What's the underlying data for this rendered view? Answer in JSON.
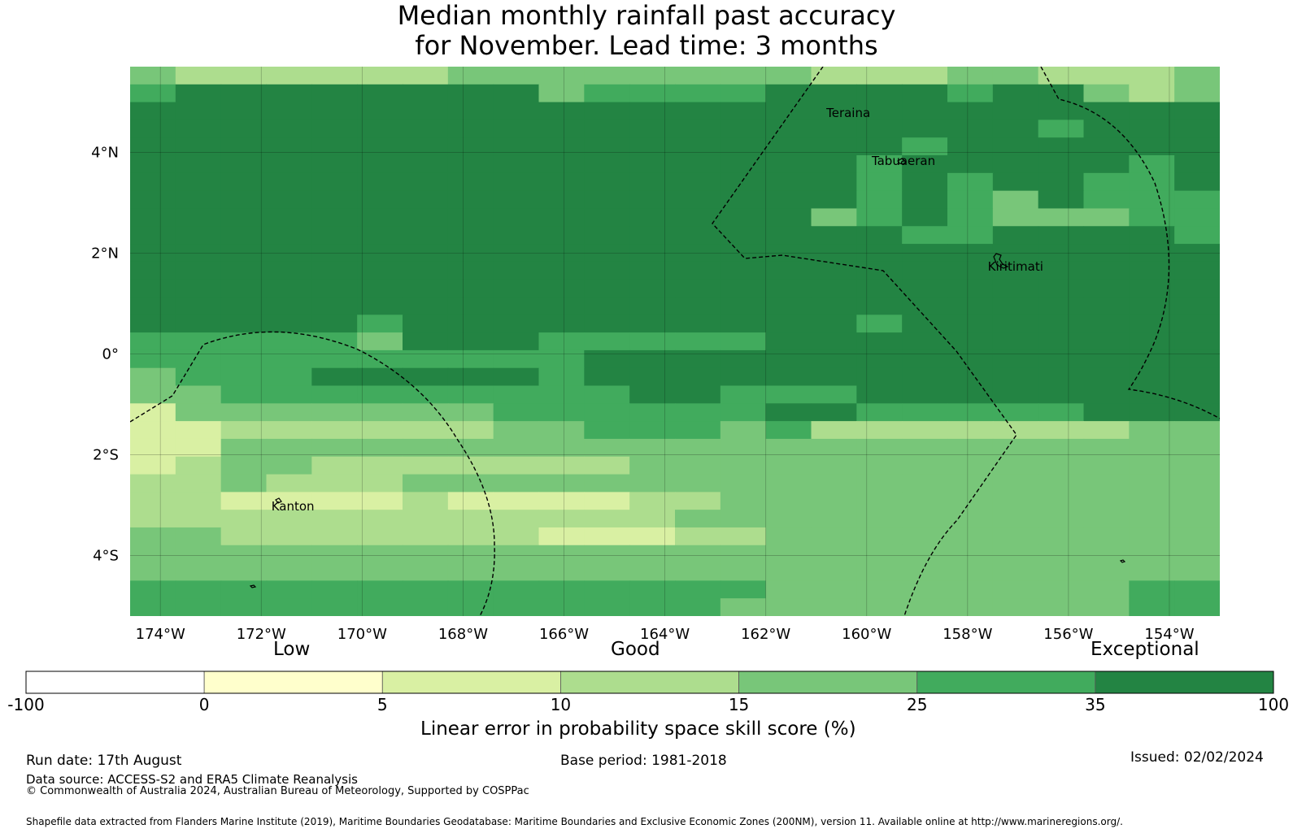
{
  "title": {
    "line1": "Median monthly rainfall past accuracy",
    "line2": "for November. Lead time: 3 months"
  },
  "map": {
    "lon_range": [
      -174.6,
      -153.0
    ],
    "lat_range": [
      -5.2,
      5.7
    ],
    "x_ticks": [
      {
        "lon": -174,
        "label": "174°W"
      },
      {
        "lon": -172,
        "label": "172°W"
      },
      {
        "lon": -170,
        "label": "170°W"
      },
      {
        "lon": -168,
        "label": "168°W"
      },
      {
        "lon": -166,
        "label": "166°W"
      },
      {
        "lon": -164,
        "label": "164°W"
      },
      {
        "lon": -162,
        "label": "162°W"
      },
      {
        "lon": -160,
        "label": "160°W"
      },
      {
        "lon": -158,
        "label": "158°W"
      },
      {
        "lon": -156,
        "label": "156°W"
      },
      {
        "lon": -154,
        "label": "154°W"
      }
    ],
    "y_ticks": [
      {
        "lat": 4,
        "label": "4°N"
      },
      {
        "lat": 2,
        "label": "2°N"
      },
      {
        "lat": 0,
        "label": "0°"
      },
      {
        "lat": -2,
        "label": "2°S"
      },
      {
        "lat": -4,
        "label": "4°S"
      }
    ],
    "places": [
      {
        "name": "Teraina",
        "lon": -160.8,
        "lat": 4.7
      },
      {
        "name": "Tabuaeran",
        "lon": -159.9,
        "lat": 3.75
      },
      {
        "name": "Kiritimati",
        "lon": -157.6,
        "lat": 1.65
      },
      {
        "name": "Kanton",
        "lon": -171.8,
        "lat": -3.1
      }
    ],
    "grid_note": "skill category index per cell: 0 = 5-10, 1 = 10-15, 2 = 15-25, 3 = 25-35, 4 = 35-100",
    "grid_rows": [
      "211111122222222111221112",
      "344444444233334444344212",
      "444444444444444444444444",
      "444444444444444444443444",
      "444444444444444443444444",
      "444444444444444434444434",
      "444444444444444434344334",
      "444444444444444434324333",
      "444444444444444234322233",
      "444444444444444443344443",
      "444444444444444444444444",
      "444444444444444444444444",
      "444444444444444444444444",
      "444444444444444444444444",
      "444443444444444434444444",
      "333332444333334444444444",
      "333333333344444444444444",
      "233344444344444444444444",
      "223333333334433344444444",
      "022222223333334433333444",
      "001111112233323111111122",
      "002222222222222222222222",
      "012211111112222222222222",
      "112111222222222222222222",
      "110000100001122222222222",
      "111111111111222222222222",
      "221111111000112222222222",
      "222222222222222222222222",
      "222222222222222222222222",
      "333333333333332222222233",
      "333333333333322222222233"
    ]
  },
  "colorbar": {
    "category_labels": [
      "Low",
      "Good",
      "Exceptional"
    ],
    "tick_labels": [
      "-100",
      "0",
      "5",
      "10",
      "15",
      "25",
      "35",
      "100"
    ],
    "colors": [
      "#ffffff",
      "#ffffcc",
      "#d9f0a3",
      "#addd8e",
      "#78c679",
      "#41ab5d",
      "#238443"
    ],
    "label": "Linear error in probability space skill score (%)"
  },
  "footer": {
    "run_date": "Run date: 17th August",
    "base_period": "Base period: 1981-2018",
    "issued": "Issued: 02/02/2024",
    "data_source": "Data source: ACCESS-S2 and ERA5 Climate Reanalysis",
    "copyright": "© Commonwealth of Australia 2024, Australian Bureau of Meteorology, Supported by COSPPac",
    "shapefile": "Shapefile data extracted from Flanders Marine Institute (2019), Maritime Boundaries Geodatabase: Maritime Boundaries and Exclusive Economic Zones (200NM), version 11. Available online at http://www.marineregions.org/."
  }
}
